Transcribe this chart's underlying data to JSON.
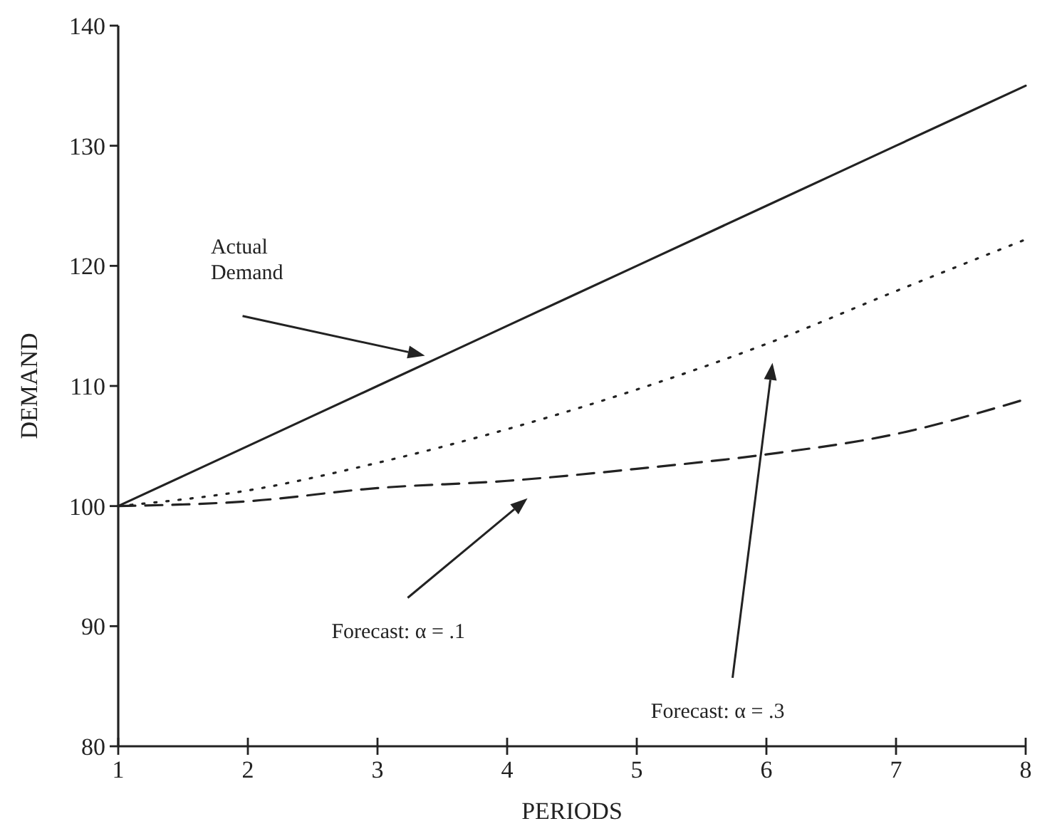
{
  "chart_data": {
    "type": "line",
    "xlabel": "PERIODS",
    "ylabel": "DEMAND",
    "x": [
      1,
      2,
      3,
      4,
      5,
      6,
      7,
      8
    ],
    "series": [
      {
        "color": "#222222",
        "line_style": "solid",
        "values": [
          100,
          105,
          110,
          115,
          120,
          125,
          130,
          135
        ]
      },
      {
        "color": "#222222",
        "line_style": "dotted",
        "values": [
          100,
          101.3,
          103.6,
          106.4,
          109.7,
          113.5,
          117.9,
          122.2
        ]
      },
      {
        "color": "#222222",
        "line_style": "dashed",
        "values": [
          100,
          100.4,
          101.5,
          102.1,
          103.1,
          104.3,
          106,
          108.9
        ]
      }
    ],
    "xlim": [
      1,
      8
    ],
    "xticks": [
      1,
      2,
      3,
      4,
      5,
      6,
      7,
      8
    ],
    "ylim": [
      80,
      140
    ],
    "yticks": [
      80,
      90,
      100,
      110,
      120,
      130,
      140
    ],
    "grid": false,
    "marker": "none",
    "annotations": [
      "Actual\nDemand",
      "Forecast: α = .1",
      "Forecast: α = .3"
    ]
  }
}
